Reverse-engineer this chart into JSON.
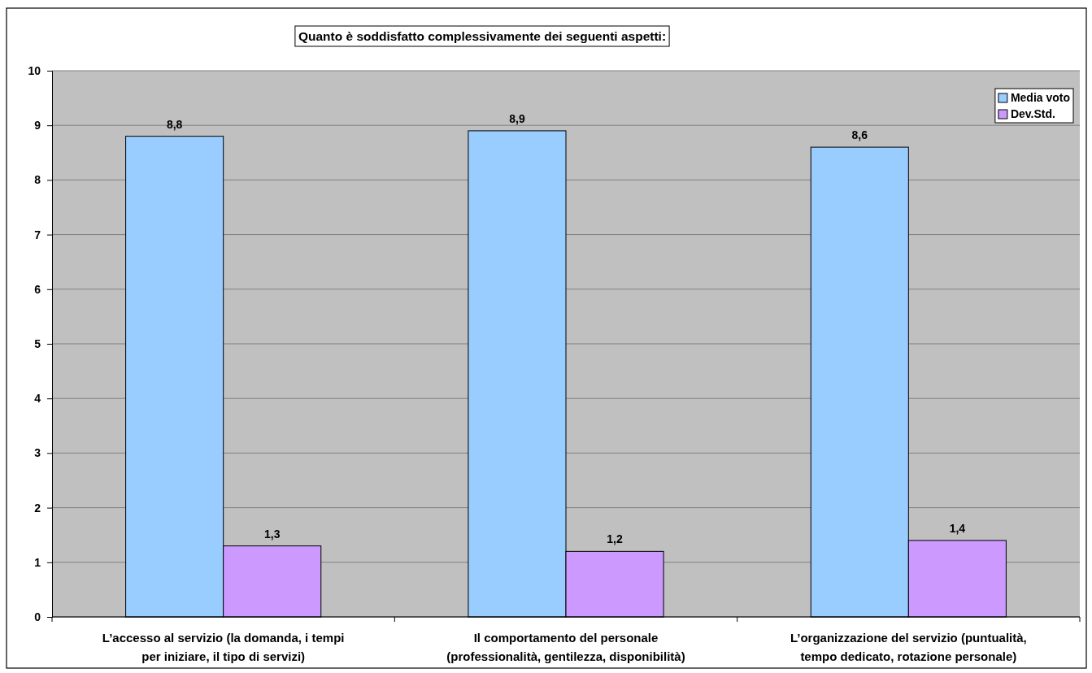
{
  "chart_data": {
    "type": "bar",
    "title": "Quanto è soddisfatto complessivamente dei seguenti aspetti:",
    "categories": [
      "L’accesso al servizio (la domanda, i tempi\nper iniziare, il tipo di servizi)",
      "Il comportamento del personale\n(professionalità, gentilezza, disponibilità)",
      "L’organizzazione del servizio (puntualità,\ntempo dedicato, rotazione personale)"
    ],
    "series": [
      {
        "name": "Media voto",
        "color": "#99ccff",
        "values": [
          8.8,
          8.9,
          8.6
        ],
        "value_labels": [
          "8,8",
          "8,9",
          "8,6"
        ]
      },
      {
        "name": "Dev.Std.",
        "color": "#cc99ff",
        "values": [
          1.3,
          1.2,
          1.4
        ],
        "value_labels": [
          "1,3",
          "1,2",
          "1,4"
        ]
      }
    ],
    "ylim": [
      0,
      10
    ],
    "yticks": [
      0,
      1,
      2,
      3,
      4,
      5,
      6,
      7,
      8,
      9,
      10
    ],
    "grid": "y",
    "legend": "top right"
  }
}
